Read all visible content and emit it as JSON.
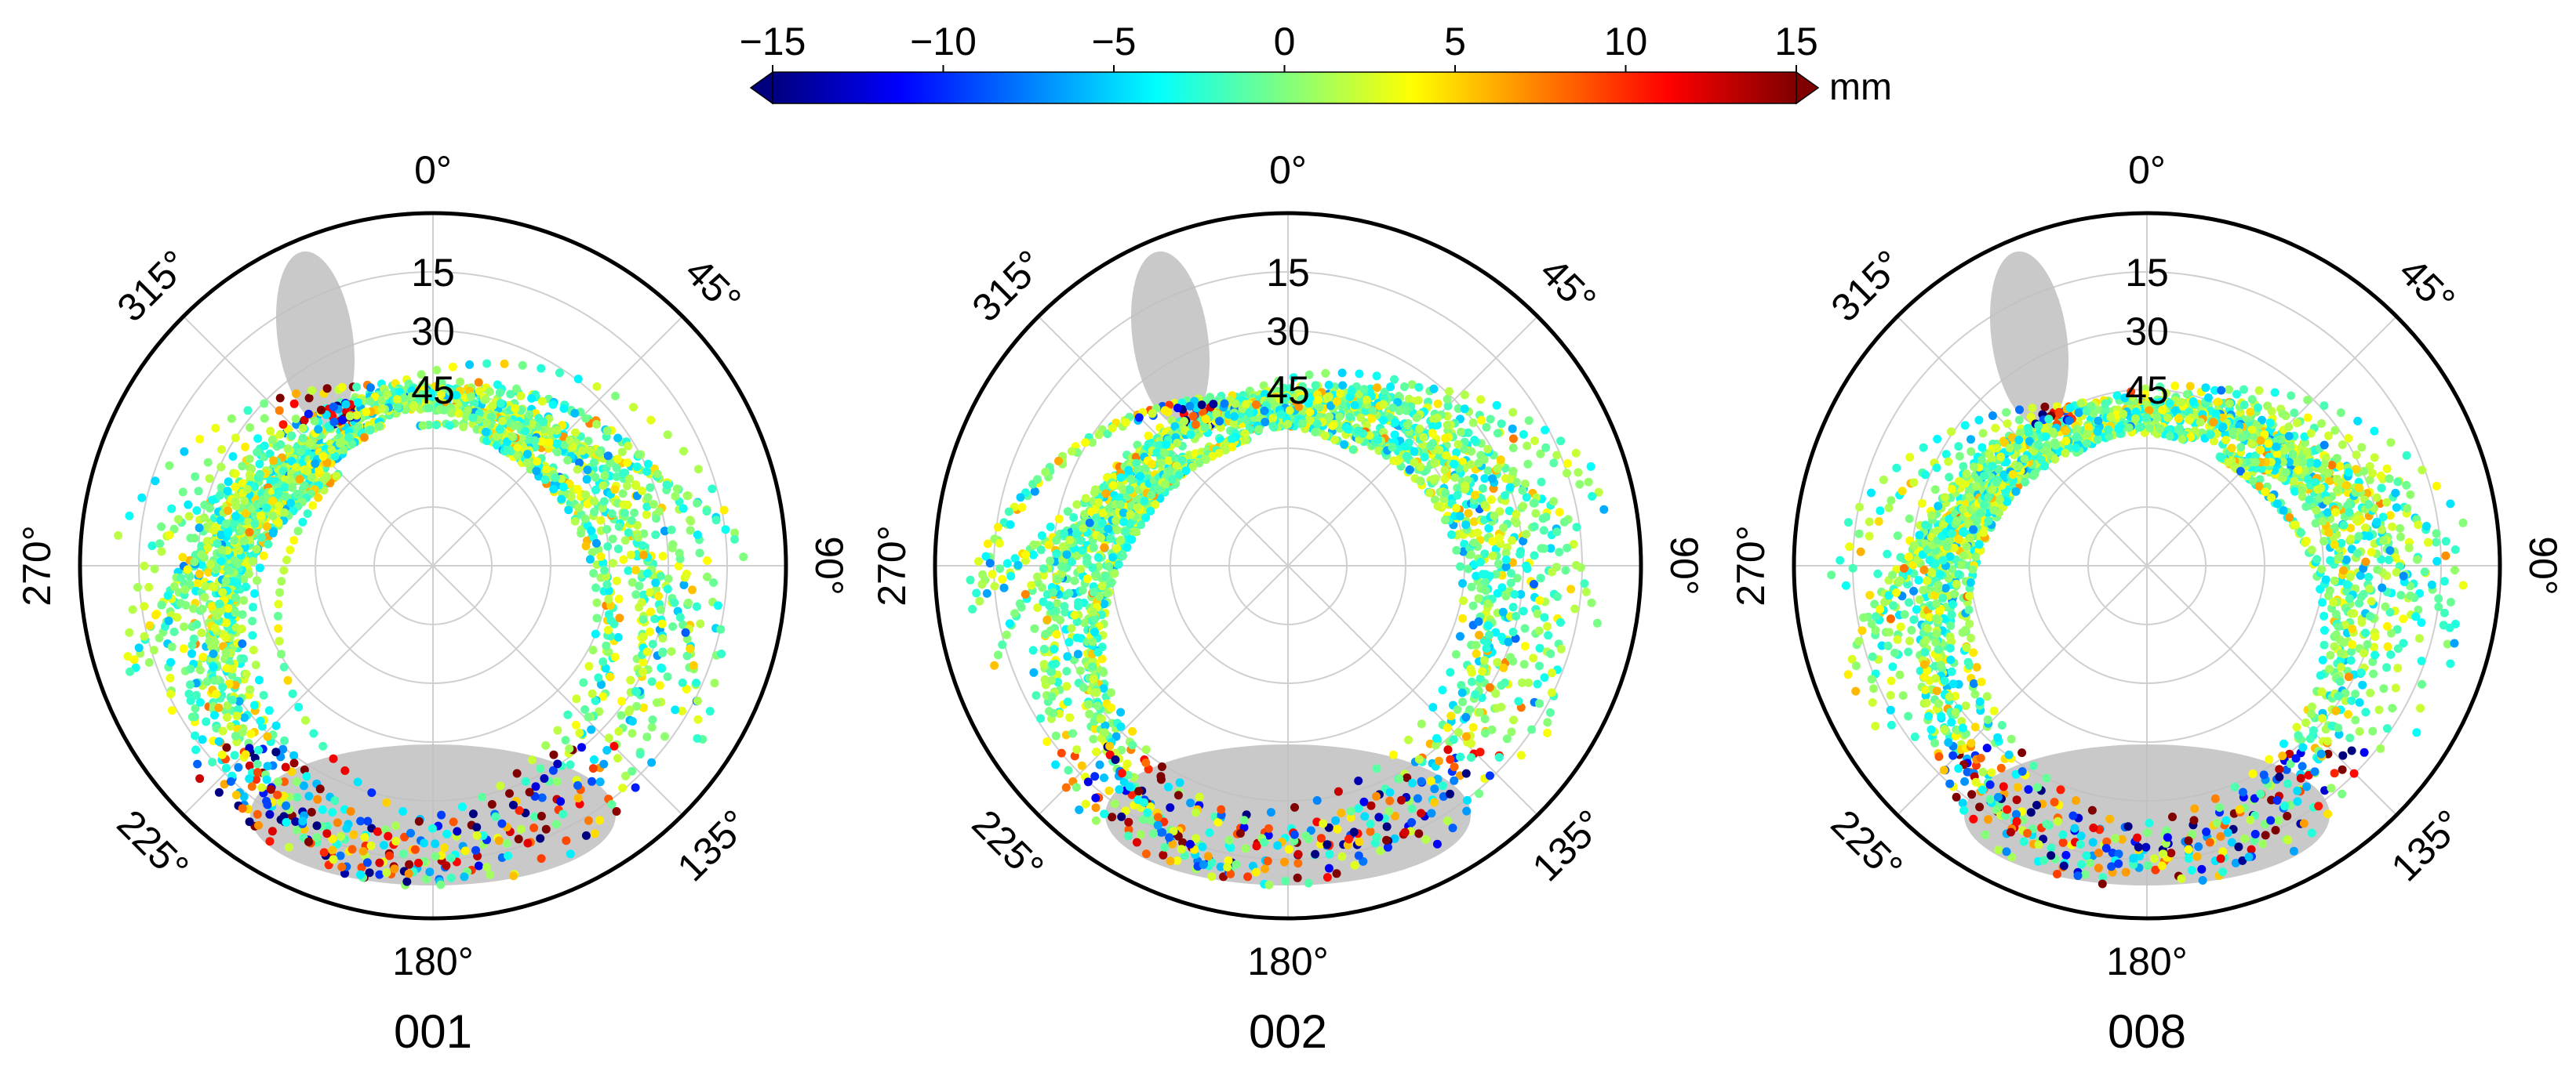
{
  "chart_data": {
    "type": "scatter",
    "colorbar": {
      "colormap": "jet",
      "min": -15,
      "max": 15,
      "ticks": [
        "−15",
        "−10",
        "−5",
        "0",
        "5",
        "10",
        "15"
      ],
      "tick_values": [
        -15,
        -10,
        -5,
        0,
        5,
        10,
        15
      ],
      "unit": "mm",
      "extend": "both",
      "colors": [
        "#00007f",
        "#0000ff",
        "#007fff",
        "#00ffff",
        "#7fff7f",
        "#ffff00",
        "#ff7f00",
        "#ff0000",
        "#7f0000"
      ]
    },
    "shading_color": "#c0c0c0",
    "panels": [
      {
        "label": "001",
        "azimuth_labels": [
          "0°",
          "45°",
          "90°",
          "135°",
          "180°",
          "225°",
          "270°",
          "315°"
        ],
        "azimuth_values": [
          0,
          45,
          90,
          135,
          180,
          225,
          270,
          315
        ],
        "radial_labels": [
          "15",
          "30",
          "45"
        ],
        "radial_values": [
          15,
          30,
          45
        ],
        "seed": 11
      },
      {
        "label": "002",
        "azimuth_labels": [
          "0°",
          "45°",
          "90°",
          "135°",
          "180°",
          "225°",
          "270°",
          "315°"
        ],
        "azimuth_values": [
          0,
          45,
          90,
          135,
          180,
          225,
          270,
          315
        ],
        "radial_labels": [
          "15",
          "30",
          "45"
        ],
        "radial_values": [
          15,
          30,
          45
        ],
        "seed": 23
      },
      {
        "label": "008",
        "azimuth_labels": [
          "0°",
          "45°",
          "90°",
          "135°",
          "180°",
          "225°",
          "270°",
          "315°"
        ],
        "azimuth_values": [
          0,
          45,
          90,
          135,
          180,
          225,
          270,
          315
        ],
        "radial_labels": [
          "15",
          "30",
          "45"
        ],
        "radial_values": [
          15,
          30,
          45
        ],
        "seed": 37
      }
    ]
  }
}
